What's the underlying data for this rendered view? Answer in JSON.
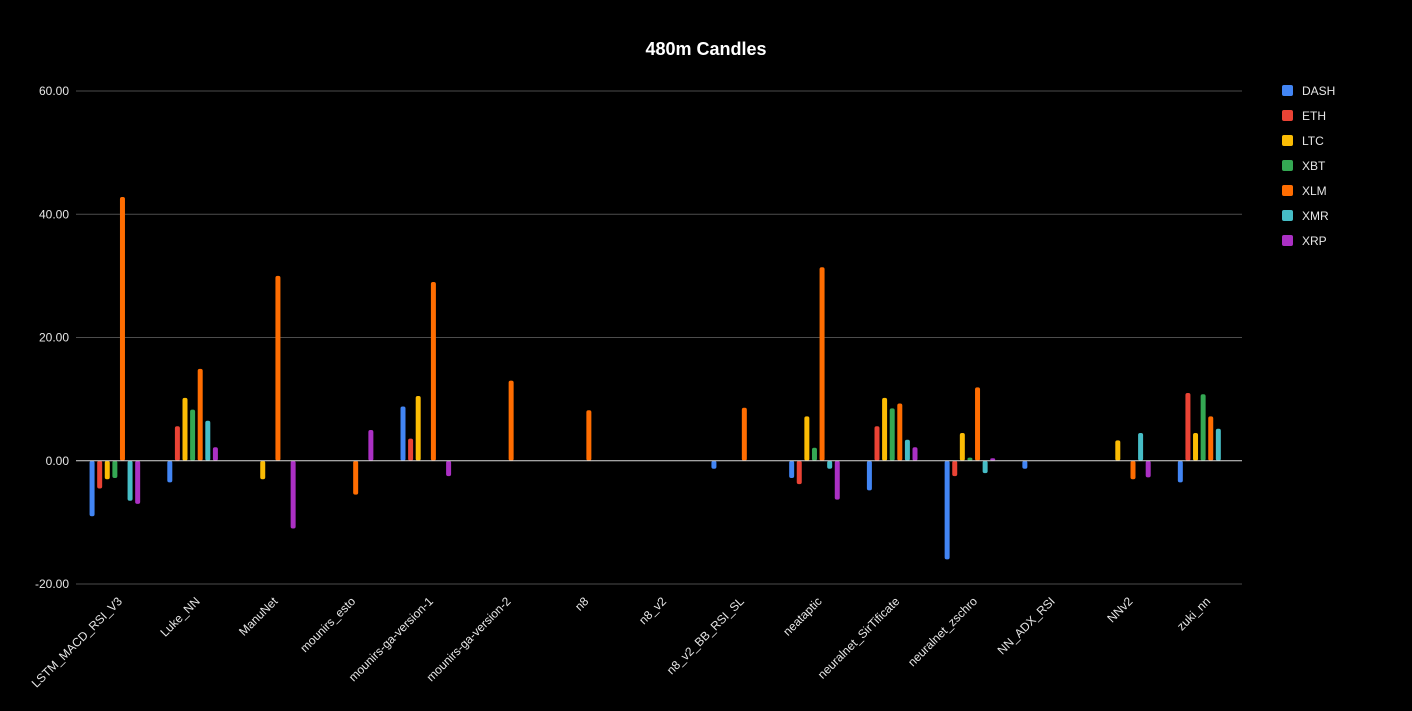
{
  "chart_data": {
    "type": "bar",
    "title": "480m Candles",
    "xlabel": "",
    "ylabel": "",
    "ylim": [
      -20,
      60
    ],
    "yticks": [
      -20,
      0,
      20,
      40,
      60
    ],
    "ytick_labels": [
      "-20.00",
      "0.00",
      "20.00",
      "40.00",
      "60.00"
    ],
    "grid": true,
    "legend_position": "right",
    "categories": [
      "LSTM_MACD_RSI_V3",
      "Luke_NN",
      "ManuNet",
      "mounirs_esto",
      "mounirs-ga-version-1",
      "mounirs-ga-version-2",
      "n8",
      "n8_v2",
      "n8_v2_BB_RSI_SL",
      "neataptic",
      "neuralnet_SirTificate",
      "neuralnet_zschro",
      "NN_ADX_RSI",
      "NNv2",
      "zuki_nn"
    ],
    "series": [
      {
        "name": "DASH",
        "color": "#4285f4",
        "values": [
          -9,
          -3.5,
          0,
          0,
          8.8,
          0,
          0,
          0,
          -1.3,
          -2.8,
          -4.8,
          -16,
          -1.3,
          0,
          -3.5
        ]
      },
      {
        "name": "ETH",
        "color": "#ea4335",
        "values": [
          -4.5,
          5.6,
          0,
          0,
          3.6,
          0,
          0,
          0,
          0,
          -3.8,
          5.6,
          -2.5,
          0,
          0,
          11
        ]
      },
      {
        "name": "LTC",
        "color": "#fbbc04",
        "values": [
          -3,
          10.2,
          -3,
          0,
          10.5,
          0,
          0,
          0,
          0,
          7.2,
          10.2,
          4.5,
          0,
          3.3,
          4.5
        ]
      },
      {
        "name": "XBT",
        "color": "#34a853",
        "values": [
          -2.8,
          8.3,
          0,
          0,
          0,
          0,
          0,
          0,
          0,
          2.1,
          8.5,
          0.5,
          0,
          0,
          10.8
        ]
      },
      {
        "name": "XLM",
        "color": "#ff6d01",
        "values": [
          42.8,
          14.9,
          30,
          -5.5,
          29,
          13,
          8.2,
          0,
          8.6,
          31.4,
          9.3,
          11.9,
          0,
          -3,
          7.2
        ]
      },
      {
        "name": "XMR",
        "color": "#46bdc6",
        "values": [
          -6.5,
          6.5,
          0,
          0,
          0,
          0,
          0,
          0,
          0,
          -1.3,
          3.4,
          -2,
          0,
          4.5,
          5.2
        ]
      },
      {
        "name": "XRP",
        "color": "#ab30c4",
        "values": [
          -7,
          2.2,
          -11,
          5,
          -2.5,
          0,
          0,
          0,
          0,
          -6.3,
          2.2,
          0.4,
          0,
          -2.7,
          0
        ]
      }
    ]
  }
}
